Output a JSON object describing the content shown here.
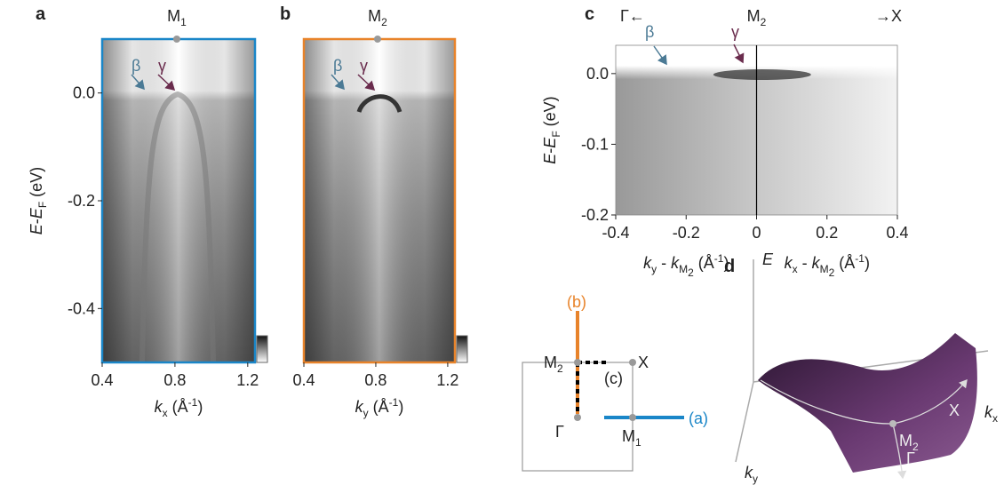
{
  "chart_data": [
    {
      "type": "image",
      "panel": "a",
      "frame_color": "#1a86c8",
      "top_label": [
        {
          "text": "M"
        },
        {
          "text": "1",
          "style": "sub"
        }
      ],
      "top_label_x": 0.81,
      "annotations": [
        "β",
        "γ"
      ],
      "xlabel": [
        {
          "text": "k",
          "style": "i"
        },
        {
          "text": "x",
          "style": "sub"
        },
        {
          "text": " (Å"
        },
        {
          "text": "-1",
          "style": "sup"
        },
        {
          "text": ")"
        }
      ],
      "ylabel": [
        {
          "text": "E",
          "style": "i"
        },
        {
          "text": "-"
        },
        {
          "text": "E",
          "style": "i"
        },
        {
          "text": "F",
          "style": "sub"
        },
        {
          "text": " (eV)"
        }
      ],
      "xlim": [
        0.4,
        1.24
      ],
      "ylim": [
        -0.5,
        0.1
      ],
      "xticks": [
        0.4,
        0.8,
        1.2
      ],
      "yticks": [
        {
          "value": 0,
          "label": "0.0"
        },
        -0.2,
        -0.4
      ]
    },
    {
      "type": "image",
      "panel": "b",
      "frame_color": "#e8832a",
      "top_label": [
        {
          "text": "M"
        },
        {
          "text": "2",
          "style": "sub"
        }
      ],
      "top_label_x": 0.81,
      "annotations": [
        "β",
        "γ"
      ],
      "xlabel": [
        {
          "text": "k",
          "style": "i"
        },
        {
          "text": "y",
          "style": "sub"
        },
        {
          "text": " (Å"
        },
        {
          "text": "-1",
          "style": "sup"
        },
        {
          "text": ")"
        }
      ],
      "xlim": [
        0.4,
        1.24
      ],
      "ylim": [
        -0.5,
        0.1
      ],
      "xticks": [
        0.4,
        0.8,
        1.2
      ]
    },
    {
      "type": "image",
      "panel": "c",
      "frame_color": "#888888",
      "top_label": [
        {
          "text": "M"
        },
        {
          "text": "2",
          "style": "sub"
        }
      ],
      "top_label_x": 0,
      "left_label": "Γ←",
      "right_label": "→X",
      "annotations": [
        "β",
        "γ"
      ],
      "xlabel_left": [
        {
          "text": "k",
          "style": "i"
        },
        {
          "text": "y",
          "style": "sub"
        },
        {
          "text": " - "
        },
        {
          "text": "k",
          "style": "i"
        },
        {
          "text": "M",
          "style": "sub"
        },
        {
          "text": "2",
          "style": "sub2"
        },
        {
          "text": " (Å"
        },
        {
          "text": "-1",
          "style": "sup"
        },
        {
          "text": ")"
        }
      ],
      "xlabel_right": [
        {
          "text": "k",
          "style": "i"
        },
        {
          "text": "x",
          "style": "sub"
        },
        {
          "text": " - "
        },
        {
          "text": "k",
          "style": "i"
        },
        {
          "text": "M",
          "style": "sub"
        },
        {
          "text": "2",
          "style": "sub2"
        },
        {
          "text": " (Å"
        },
        {
          "text": "-1",
          "style": "sup"
        },
        {
          "text": ")"
        }
      ],
      "ylabel": [
        {
          "text": "E",
          "style": "i"
        },
        {
          "text": "-"
        },
        {
          "text": "E",
          "style": "i"
        },
        {
          "text": "F",
          "style": "sub"
        },
        {
          "text": " (eV)"
        }
      ],
      "xlim": [
        -0.4,
        0.4
      ],
      "ylim": [
        -0.2,
        0.04
      ],
      "xticks": [
        -0.4,
        -0.2,
        0,
        0.2,
        0.4
      ],
      "yticks": [
        {
          "value": 0,
          "label": "0.0"
        },
        -0.1,
        -0.2
      ]
    }
  ],
  "bz_diagram": {
    "b": "(b)",
    "c": "(c)",
    "a": "(a)",
    "X": "X",
    "Gamma": "Γ",
    "M2": [
      {
        "text": "M"
      },
      {
        "text": "2",
        "style": "sub"
      }
    ],
    "M1": [
      {
        "text": "M"
      },
      {
        "text": "1",
        "style": "sub"
      }
    ]
  },
  "surface_diagram": {
    "panel": "d",
    "E": [
      {
        "text": "E",
        "style": "i"
      }
    ],
    "X": "X",
    "Gamma": "Γ",
    "kx": [
      {
        "text": "k",
        "style": "i"
      },
      {
        "text": "x",
        "style": "sub"
      }
    ],
    "ky": [
      {
        "text": "k",
        "style": "i"
      },
      {
        "text": "y",
        "style": "sub"
      }
    ],
    "M2": [
      {
        "text": "M"
      },
      {
        "text": "2",
        "style": "sub"
      }
    ]
  }
}
